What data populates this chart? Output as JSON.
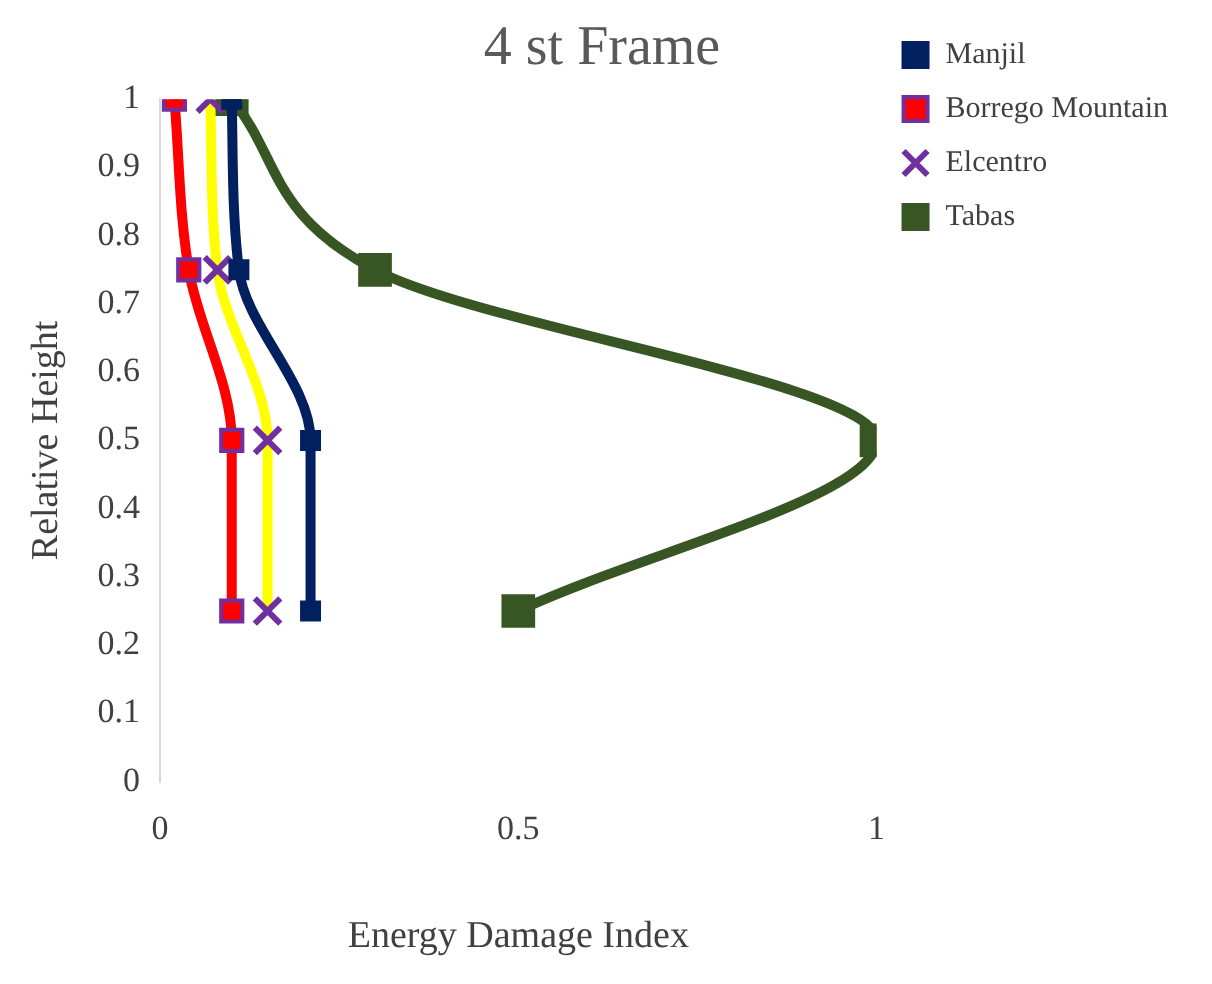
{
  "chart_data": {
    "type": "line",
    "title": "4 st Frame",
    "xlabel": "Energy Damage Index",
    "ylabel": "Relative Height",
    "x": [
      1,
      0.75,
      0.5,
      0.25
    ],
    "series": [
      {
        "name": "Manjil",
        "color": "#002060",
        "marker": "square",
        "values": [
          0.1,
          0.11,
          0.21,
          0.21
        ]
      },
      {
        "name": "Borrego Mountain",
        "color": "#ff0000",
        "marker": "square",
        "values": [
          0.02,
          0.04,
          0.1,
          0.1
        ]
      },
      {
        "name": "Elcentro",
        "color": "#ffff00",
        "marker": "cross",
        "values": [
          0.07,
          0.08,
          0.15,
          0.15
        ]
      },
      {
        "name": "Tabas",
        "color": "#375623",
        "marker": "square",
        "values": [
          0.1,
          0.3,
          1.0,
          0.5
        ]
      }
    ],
    "orientation": "horizontal",
    "xlim": [
      0,
      1
    ],
    "xticks": [
      0,
      0.5,
      1
    ],
    "ylim": [
      0,
      1
    ],
    "yticks": [
      0,
      0.1,
      0.2,
      0.3,
      0.4,
      0.5,
      0.6,
      0.7,
      0.8,
      0.9,
      1
    ],
    "grid": false,
    "legend": "top right"
  }
}
